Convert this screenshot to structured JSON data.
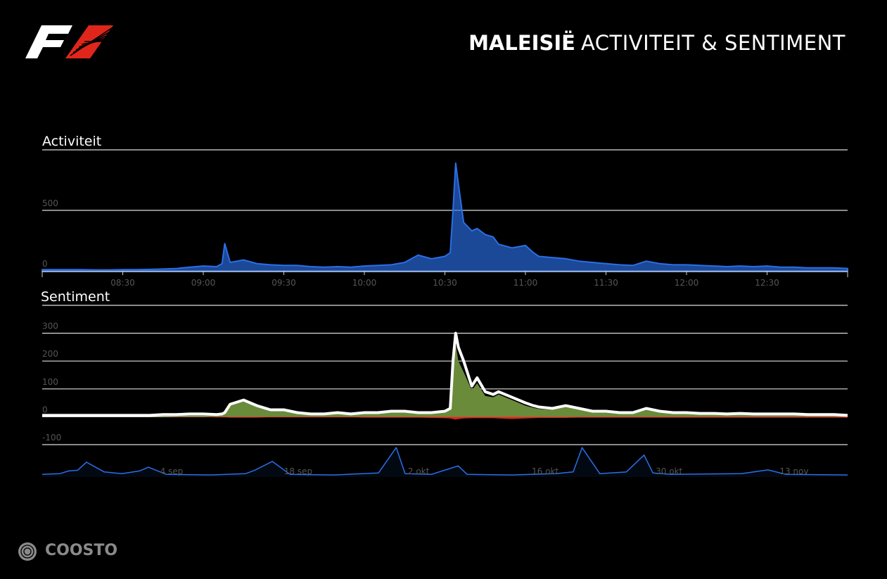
{
  "header": {
    "title_bold": "MALEISIË",
    "title_rest": "ACTIVITEIT & SENTIMENT"
  },
  "footer": {
    "brand": "COOSTO"
  },
  "chart_data": [
    {
      "type": "area",
      "title": "Activiteit",
      "color": "#2a6fe8",
      "x": [
        "08:00",
        "08:05",
        "08:10",
        "08:15",
        "08:20",
        "08:25",
        "08:30",
        "08:35",
        "08:40",
        "08:45",
        "08:50",
        "08:55",
        "09:00",
        "09:05",
        "09:07",
        "09:08",
        "09:10",
        "09:15",
        "09:20",
        "09:25",
        "09:30",
        "09:35",
        "09:40",
        "09:45",
        "09:50",
        "09:55",
        "10:00",
        "10:05",
        "10:10",
        "10:15",
        "10:20",
        "10:25",
        "10:30",
        "10:32",
        "10:33",
        "10:34",
        "10:35",
        "10:37",
        "10:40",
        "10:42",
        "10:45",
        "10:48",
        "10:50",
        "10:55",
        "11:00",
        "11:03",
        "11:05",
        "11:10",
        "11:15",
        "11:20",
        "11:25",
        "11:30",
        "11:35",
        "11:40",
        "11:45",
        "11:50",
        "11:55",
        "12:00",
        "12:05",
        "12:10",
        "12:15",
        "12:20",
        "12:25",
        "12:30",
        "12:35",
        "12:40",
        "12:45",
        "12:50",
        "12:55",
        "13:00"
      ],
      "values": [
        10,
        10,
        10,
        10,
        8,
        8,
        10,
        10,
        12,
        15,
        20,
        30,
        40,
        35,
        60,
        225,
        70,
        90,
        60,
        50,
        45,
        45,
        35,
        30,
        35,
        30,
        40,
        45,
        50,
        70,
        130,
        100,
        120,
        150,
        500,
        890,
        720,
        400,
        330,
        350,
        300,
        280,
        220,
        190,
        210,
        150,
        120,
        110,
        100,
        80,
        70,
        60,
        50,
        45,
        80,
        60,
        50,
        50,
        45,
        40,
        35,
        40,
        35,
        40,
        30,
        30,
        25,
        25,
        25,
        20
      ],
      "xlim": [
        "08:00",
        "13:00"
      ],
      "xticks": [
        "08:30",
        "09:00",
        "09:30",
        "10:00",
        "10:30",
        "11:00",
        "11:30",
        "12:00",
        "12:30"
      ],
      "ylim": [
        0,
        1000
      ],
      "yticks": [
        0,
        500
      ],
      "grid": true
    },
    {
      "type": "area",
      "title": "Sentiment",
      "x": [
        "08:00",
        "08:05",
        "08:10",
        "08:15",
        "08:20",
        "08:25",
        "08:30",
        "08:35",
        "08:40",
        "08:45",
        "08:50",
        "08:55",
        "09:00",
        "09:05",
        "09:07",
        "09:08",
        "09:10",
        "09:15",
        "09:20",
        "09:25",
        "09:30",
        "09:35",
        "09:40",
        "09:45",
        "09:50",
        "09:55",
        "10:00",
        "10:05",
        "10:10",
        "10:15",
        "10:20",
        "10:25",
        "10:30",
        "10:32",
        "10:33",
        "10:34",
        "10:35",
        "10:37",
        "10:40",
        "10:42",
        "10:45",
        "10:48",
        "10:50",
        "10:55",
        "11:00",
        "11:03",
        "11:05",
        "11:10",
        "11:15",
        "11:20",
        "11:25",
        "11:30",
        "11:35",
        "11:40",
        "11:45",
        "11:50",
        "11:55",
        "12:00",
        "12:05",
        "12:10",
        "12:15",
        "12:20",
        "12:25",
        "12:30",
        "12:35",
        "12:40",
        "12:45",
        "12:50",
        "12:55",
        "13:00"
      ],
      "series": [
        {
          "type": "area",
          "color": "#6a8b3a",
          "values": [
            2,
            2,
            2,
            2,
            2,
            2,
            2,
            2,
            2,
            4,
            4,
            6,
            6,
            5,
            7,
            10,
            40,
            55,
            35,
            20,
            20,
            12,
            8,
            8,
            12,
            8,
            12,
            12,
            16,
            16,
            12,
            12,
            16,
            25,
            180,
            260,
            200,
            160,
            95,
            120,
            75,
            70,
            80,
            60,
            40,
            32,
            28,
            25,
            35,
            25,
            16,
            16,
            12,
            12,
            25,
            16,
            12,
            12,
            10,
            10,
            8,
            10,
            8,
            8,
            8,
            8,
            6,
            6,
            6,
            3
          ]
        },
        {
          "type": "area",
          "color": "#d42a1f",
          "values": [
            0,
            0,
            0,
            0,
            0,
            0,
            0,
            0,
            0,
            0,
            -1,
            -1,
            -1,
            -2,
            -2,
            -2,
            -3,
            -3,
            -3,
            -2,
            -2,
            -2,
            -2,
            -2,
            -2,
            -2,
            -3,
            -3,
            -3,
            -3,
            -3,
            -4,
            -5,
            -6,
            -8,
            -10,
            -8,
            -6,
            -5,
            -5,
            -5,
            -5,
            -6,
            -8,
            -6,
            -5,
            -4,
            -4,
            -4,
            -3,
            -3,
            -3,
            -3,
            -3,
            -3,
            -3,
            -3,
            -3,
            -3,
            -3,
            -3,
            -3,
            -3,
            -3,
            -3,
            -3,
            -3,
            -3,
            -3,
            -3
          ]
        },
        {
          "type": "line",
          "color": "#ffffff",
          "values": [
            5,
            5,
            5,
            5,
            5,
            5,
            5,
            5,
            5,
            8,
            8,
            10,
            10,
            8,
            10,
            15,
            45,
            60,
            40,
            25,
            25,
            15,
            10,
            10,
            15,
            10,
            15,
            15,
            20,
            20,
            15,
            15,
            20,
            30,
            200,
            300,
            250,
            200,
            110,
            140,
            90,
            80,
            90,
            70,
            50,
            40,
            35,
            30,
            40,
            30,
            20,
            20,
            15,
            15,
            30,
            20,
            15,
            15,
            12,
            12,
            10,
            12,
            10,
            10,
            10,
            10,
            8,
            8,
            8,
            5
          ]
        }
      ],
      "xlim": [
        "08:00",
        "13:00"
      ],
      "ylim": [
        -100,
        400
      ],
      "yticks": [
        -100,
        0,
        100,
        200,
        300
      ],
      "grid": true
    },
    {
      "type": "line",
      "color": "#2a6fe8",
      "x": [
        "22 aug",
        "24 aug",
        "25 aug",
        "26 aug",
        "27 aug",
        "29 aug",
        "31 aug",
        "2 sep",
        "3 sep",
        "5 sep",
        "10 sep",
        "14 sep",
        "15 sep",
        "17 sep",
        "19 sep",
        "24 sep",
        "29 sep",
        "1 okt",
        "2 okt",
        "5 okt",
        "8 okt",
        "9 okt",
        "14 okt",
        "19 okt",
        "21 okt",
        "22 okt",
        "24 okt",
        "27 okt",
        "29 okt",
        "30 okt",
        "1 nov",
        "9 nov",
        "12 nov",
        "14 nov",
        "21 nov"
      ],
      "values": [
        8,
        10,
        18,
        20,
        44,
        15,
        10,
        18,
        29,
        8,
        6,
        10,
        20,
        46,
        8,
        6,
        12,
        87,
        10,
        8,
        33,
        8,
        6,
        10,
        15,
        87,
        10,
        15,
        65,
        12,
        8,
        10,
        21,
        8,
        6
      ],
      "xlim": [
        "22 aug",
        "21 nov"
      ],
      "xticks": [
        "4 sep",
        "18 sep",
        "2 okt",
        "16 okt",
        "30 okt",
        "13 nov"
      ],
      "ylim": [
        0,
        100
      ]
    }
  ]
}
